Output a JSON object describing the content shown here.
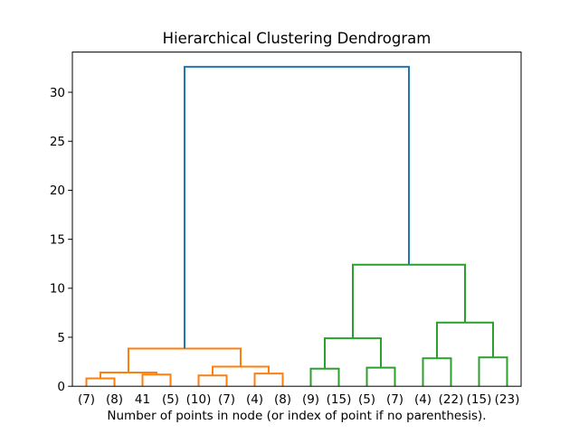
{
  "chart_data": {
    "type": "dendrogram",
    "title": "Hierarchical Clustering Dendrogram",
    "xlabel": "Number of points in node (or index of point if no parenthesis).",
    "grid": false,
    "legend": null,
    "xlim": [
      0,
      160
    ],
    "ylim": [
      0,
      34.1
    ],
    "yticks": [
      0,
      5,
      10,
      15,
      20,
      25,
      30
    ],
    "leaf_labels": [
      "(7)",
      "(8)",
      "41",
      "(5)",
      "(10)",
      "(7)",
      "(4)",
      "(8)",
      "(9)",
      "(15)",
      "(5)",
      "(7)",
      "(4)",
      "(22)",
      "(15)",
      "(23)"
    ],
    "leaf_x": [
      5,
      15,
      25,
      35,
      45,
      55,
      65,
      75,
      85,
      95,
      105,
      115,
      125,
      135,
      145,
      155
    ],
    "colors": {
      "cluster_left": "#ff7f0e",
      "cluster_right": "#2ca02c",
      "root_link": "#1f77b4",
      "axes": "#000000",
      "background": "#ffffff"
    },
    "links": [
      {
        "children": [
          "L0",
          "L1"
        ],
        "height": 0.8,
        "color": "#ff7f0e"
      },
      {
        "children": [
          "L2",
          "L3"
        ],
        "height": 1.2,
        "color": "#ff7f0e"
      },
      {
        "children": [
          "N0",
          "N1"
        ],
        "height": 1.4,
        "color": "#ff7f0e"
      },
      {
        "children": [
          "L4",
          "L5"
        ],
        "height": 1.1,
        "color": "#ff7f0e"
      },
      {
        "children": [
          "L6",
          "L7"
        ],
        "height": 1.3,
        "color": "#ff7f0e"
      },
      {
        "children": [
          "N3",
          "N4"
        ],
        "height": 2.0,
        "color": "#ff7f0e"
      },
      {
        "children": [
          "N2",
          "N5"
        ],
        "height": 3.85,
        "color": "#ff7f0e"
      },
      {
        "children": [
          "L8",
          "L9"
        ],
        "height": 1.8,
        "color": "#2ca02c"
      },
      {
        "children": [
          "L10",
          "L11"
        ],
        "height": 1.9,
        "color": "#2ca02c"
      },
      {
        "children": [
          "N7",
          "N8"
        ],
        "height": 4.9,
        "color": "#2ca02c"
      },
      {
        "children": [
          "L12",
          "L13"
        ],
        "height": 2.85,
        "color": "#2ca02c"
      },
      {
        "children": [
          "L14",
          "L15"
        ],
        "height": 2.95,
        "color": "#2ca02c"
      },
      {
        "children": [
          "N10",
          "N11"
        ],
        "height": 6.5,
        "color": "#2ca02c"
      },
      {
        "children": [
          "N9",
          "N12"
        ],
        "height": 12.4,
        "color": "#2ca02c"
      },
      {
        "children": [
          "N6",
          "N13"
        ],
        "height": 32.6,
        "color": "#1f77b4"
      }
    ]
  }
}
